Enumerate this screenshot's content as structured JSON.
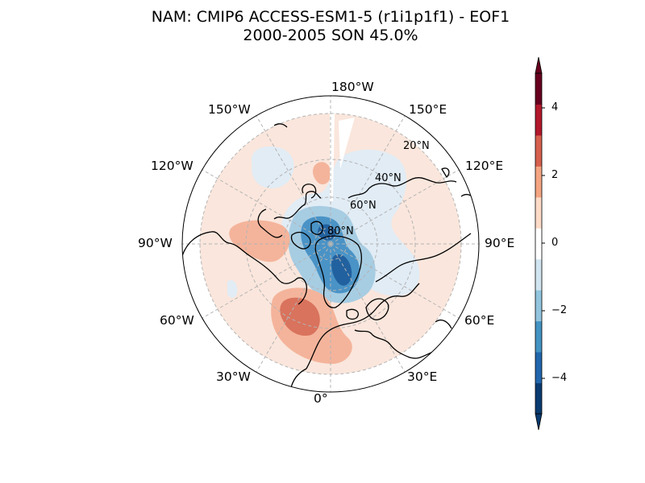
{
  "title": {
    "line1": "NAM: CMIP6 ACCESS-ESM1-5 (r1i1p1f1) - EOF1",
    "line2": "2000-2005 SON 45.0%"
  },
  "map": {
    "projection": "north-polar-stereographic",
    "longitude_labels": {
      "lon_180W": "180°W",
      "lon_150E": "150°E",
      "lon_120E": "120°E",
      "lon_90E": "90°E",
      "lon_60E": "60°E",
      "lon_30E": "30°E",
      "lon_0": "0°",
      "lon_30W": "30°W",
      "lon_60W": "60°W",
      "lon_90W": "90°W",
      "lon_120W": "120°W",
      "lon_150W": "150°W"
    },
    "latitude_labels": {
      "lat_20N": "20°N",
      "lat_40N": "40°N",
      "lat_60N": "60°N",
      "lat_80N": "80°N"
    },
    "gridlines": true
  },
  "colorbar": {
    "levels": [
      -5,
      -4,
      -3,
      -2,
      -1,
      0,
      1,
      2,
      3,
      4,
      5
    ],
    "colors": [
      "#0a3b70",
      "#2166ac",
      "#4393c3",
      "#92c5de",
      "#d1e5f0",
      "#ffffff",
      "#fddbc7",
      "#f4a582",
      "#d6604d",
      "#b2182b",
      "#67001f"
    ],
    "ticks": [
      "4",
      "2",
      "0",
      "−2",
      "−4"
    ],
    "extend": "both"
  },
  "field_colors": {
    "weak_positive": "#fae6dc",
    "positive": "#f4b49b",
    "strong_positive": "#d9735d",
    "weak_negative": "#e1ecf5",
    "negative": "#a7cde3",
    "strong_negative": "#4a93c6",
    "very_strong_negative": "#22619f"
  }
}
